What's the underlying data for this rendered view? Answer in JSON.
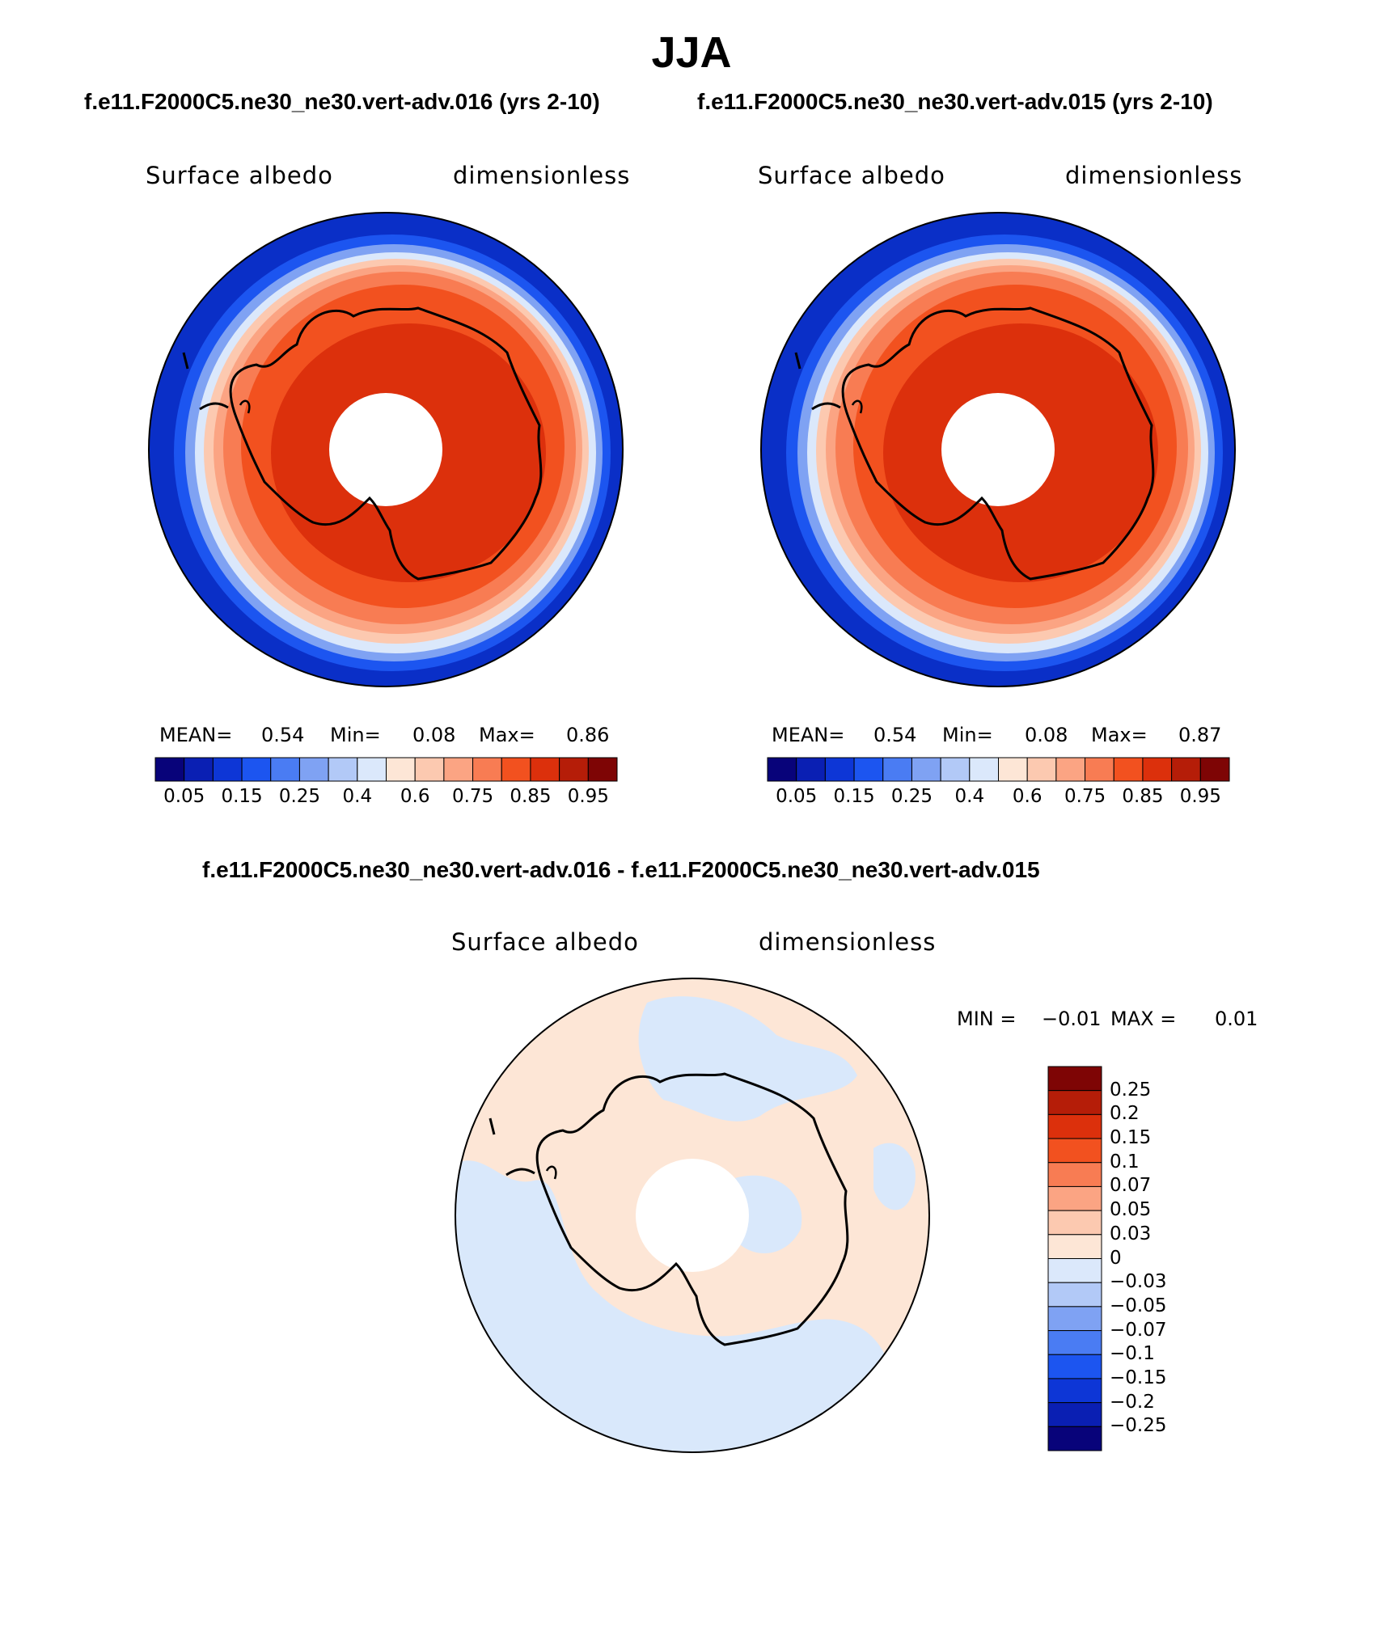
{
  "season": "JJA",
  "top_titles": {
    "left": "f.e11.F2000C5.ne30_ne30.vert-adv.016 (yrs 2-10)",
    "right": "f.e11.F2000C5.ne30_ne30.vert-adv.015 (yrs 2-10)"
  },
  "diff_title": "f.e11.F2000C5.ne30_ne30.vert-adv.016 - f.e11.F2000C5.ne30_ne30.vert-adv.015",
  "panels": [
    {
      "variable": "Surface albedo",
      "units": "dimensionless",
      "mean_label": "MEAN=",
      "mean": "0.54",
      "min_label": "Min=",
      "min": "0.08",
      "max_label": "Max=",
      "max": "0.86"
    },
    {
      "variable": "Surface albedo",
      "units": "dimensionless",
      "mean_label": "MEAN=",
      "mean": "0.54",
      "min_label": "Min=",
      "min": "0.08",
      "max_label": "Max=",
      "max": "0.87"
    }
  ],
  "diff_panel": {
    "variable": "Surface albedo",
    "units": "dimensionless",
    "min_label": "MIN =",
    "min": "−0.01",
    "max_label": "MAX =",
    "max": "0.01"
  },
  "colorbar_main": {
    "colors": [
      "#08037a",
      "#0a1fb3",
      "#0d36d6",
      "#1c55f0",
      "#4a7cf3",
      "#7fa2f3",
      "#b2c9f7",
      "#dbe8fb",
      "#fde6d6",
      "#fcc9b0",
      "#fba483",
      "#f87c53",
      "#f2511f",
      "#dc300c",
      "#b51d08",
      "#7e0505"
    ],
    "tick_labels": [
      "0.05",
      "0.15",
      "0.25",
      "0.4",
      "0.6",
      "0.75",
      "0.85",
      "0.95"
    ]
  },
  "colorbar_diff": {
    "colors": [
      "#08037a",
      "#0a1fb3",
      "#0d36d6",
      "#1c55f0",
      "#4a7cf3",
      "#7fa2f3",
      "#b2c9f7",
      "#dbe8fb",
      "#fde6d6",
      "#fcc9b0",
      "#fba483",
      "#f87c53",
      "#f2511f",
      "#dc300c",
      "#b51d08",
      "#7e0505"
    ],
    "tick_labels": [
      "0.25",
      "0.2",
      "0.15",
      "0.1",
      "0.07",
      "0.05",
      "0.03",
      "0",
      "−0.03",
      "−0.05",
      "−0.07",
      "−0.1",
      "−0.15",
      "−0.2",
      "−0.25"
    ]
  },
  "map_colors": {
    "ocean_low": "#0a2fc7",
    "ice_high": "#f2511f",
    "ice_higher": "#dc300c",
    "diff_pos": "#fde6d6",
    "diff_neg": "#d9e8fb",
    "coast": "#000000"
  }
}
